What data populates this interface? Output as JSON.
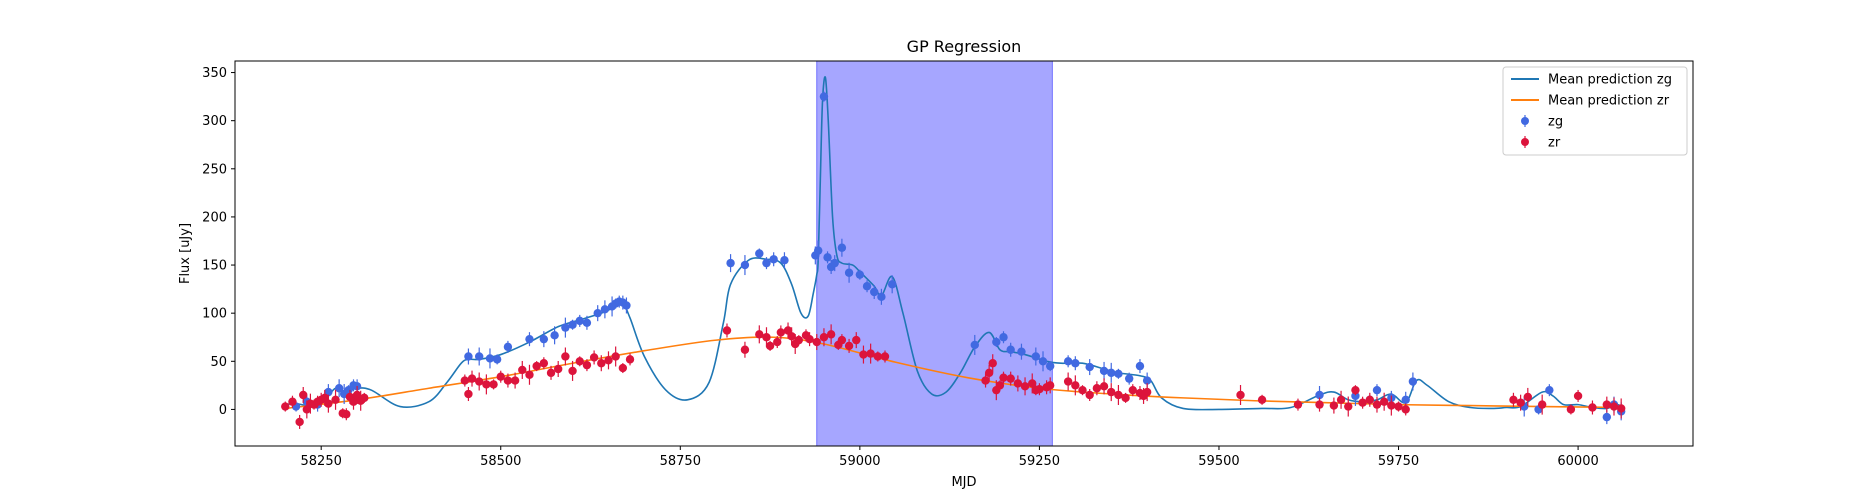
{
  "chart_data": {
    "type": "scatter",
    "title": "GP Regression",
    "xlabel": "MJD",
    "ylabel": "Flux [uJy]",
    "xlim": [
      58130,
      60160
    ],
    "ylim": [
      -38,
      362
    ],
    "xticks": [
      58250,
      58500,
      58750,
      59000,
      59250,
      59500,
      59750,
      60000
    ],
    "yticks": [
      0,
      50,
      100,
      150,
      200,
      250,
      300,
      350
    ],
    "grid": false,
    "legend_position": "top-right",
    "legend": [
      "Mean prediction zg",
      "Mean prediction zr",
      "zg",
      "zr"
    ],
    "highlight_span": {
      "x_start": 58940,
      "x_end": 59268,
      "color": "#a6a6ff"
    },
    "colors": {
      "zg_line": "#1f77b4",
      "zr_line": "#ff7f0e",
      "zg_points": "#4169e1",
      "zr_points": "#dc143c"
    },
    "series": [
      {
        "name": "Mean prediction zg",
        "kind": "line",
        "x": [
          58200,
          58215,
          58235,
          58255,
          58270,
          58285,
          58300,
          58320,
          58360,
          58400,
          58425,
          58445,
          58455,
          58470,
          58500,
          58540,
          58580,
          58610,
          58640,
          58660,
          58670,
          58680,
          58700,
          58730,
          58760,
          58790,
          58810,
          58820,
          58845,
          58870,
          58890,
          58905,
          58918,
          58928,
          58935,
          58940,
          58942,
          58945,
          58948,
          58952,
          58956,
          58962,
          58968,
          58975,
          58990,
          59000,
          59020,
          59030,
          59045,
          59060,
          59080,
          59100,
          59120,
          59140,
          59160,
          59180,
          59195,
          59210,
          59230,
          59260,
          59280,
          59310,
          59340,
          59360,
          59390,
          59405,
          59420,
          59450,
          59500,
          59560,
          59600,
          59640,
          59660,
          59680,
          59700,
          59720,
          59740,
          59760,
          59775,
          59790,
          59820,
          59850,
          59880,
          59900,
          59920,
          59950,
          59965,
          59980,
          60000,
          60020,
          60040,
          60055,
          60065
        ],
        "y": [
          5,
          6,
          4,
          10,
          22,
          18,
          22,
          20,
          3,
          8,
          28,
          48,
          52,
          52,
          57,
          70,
          86,
          93,
          100,
          107,
          110,
          95,
          55,
          20,
          10,
          28,
          90,
          130,
          155,
          156,
          152,
          130,
          100,
          97,
          120,
          140,
          155,
          240,
          320,
          345,
          300,
          200,
          160,
          152,
          150,
          143,
          128,
          118,
          138,
          100,
          40,
          16,
          18,
          38,
          65,
          80,
          62,
          60,
          57,
          50,
          48,
          48,
          42,
          38,
          35,
          30,
          12,
          1,
          0,
          1,
          2,
          15,
          18,
          10,
          8,
          10,
          16,
          7,
          30,
          25,
          8,
          2,
          1,
          2,
          3,
          18,
          14,
          5,
          5,
          2,
          1,
          5,
          0
        ]
      },
      {
        "name": "Mean prediction zr",
        "kind": "line",
        "x": [
          58200,
          58300,
          58400,
          58500,
          58600,
          58700,
          58800,
          58880,
          58950,
          59050,
          59150,
          59250,
          59350,
          59450,
          59550,
          59650,
          59750,
          59850,
          59950,
          60065
        ],
        "y": [
          1,
          10,
          22,
          34,
          48,
          61,
          72,
          75,
          68,
          49,
          33,
          22,
          16,
          12,
          9,
          7,
          5,
          4,
          3,
          2
        ]
      },
      {
        "name": "zg",
        "kind": "points",
        "x": [
          58215,
          58230,
          58245,
          58260,
          58275,
          58282,
          58288,
          58295,
          58300,
          58455,
          58470,
          58485,
          58495,
          58510,
          58540,
          58560,
          58575,
          58590,
          58600,
          58610,
          58620,
          58635,
          58645,
          58655,
          58660,
          58665,
          58670,
          58675,
          58820,
          58840,
          58860,
          58870,
          58880,
          58895,
          58938,
          58942,
          58950,
          58955,
          58960,
          58965,
          58975,
          58985,
          59000,
          59010,
          59020,
          59030,
          59045,
          59160,
          59190,
          59200,
          59210,
          59225,
          59245,
          59255,
          59265,
          59290,
          59300,
          59320,
          59340,
          59350,
          59360,
          59375,
          59390,
          59400,
          59640,
          59690,
          59710,
          59720,
          59740,
          59760,
          59770,
          59925,
          59945,
          59960,
          60040,
          60050,
          60060
        ],
        "y": [
          3,
          8,
          5,
          18,
          22,
          16,
          20,
          25,
          24,
          55,
          55,
          53,
          52,
          65,
          73,
          73,
          77,
          85,
          88,
          92,
          90,
          100,
          104,
          107,
          110,
          112,
          111,
          108,
          152,
          150,
          162,
          152,
          156,
          155,
          160,
          165,
          325,
          158,
          148,
          152,
          168,
          142,
          140,
          128,
          122,
          117,
          130,
          67,
          70,
          75,
          62,
          60,
          55,
          50,
          45,
          50,
          48,
          44,
          40,
          38,
          37,
          32,
          45,
          30,
          15,
          14,
          10,
          20,
          12,
          10,
          29,
          3,
          0,
          20,
          -8,
          5,
          -2
        ]
      },
      {
        "name": "zr",
        "kind": "points",
        "x": [
          58200,
          58210,
          58220,
          58225,
          58230,
          58235,
          58240,
          58245,
          58250,
          58255,
          58260,
          58270,
          58280,
          58285,
          58290,
          58295,
          58300,
          58305,
          58310,
          58450,
          58455,
          58460,
          58470,
          58480,
          58490,
          58500,
          58510,
          58520,
          58530,
          58540,
          58550,
          58560,
          58570,
          58580,
          58590,
          58600,
          58610,
          58620,
          58630,
          58640,
          58650,
          58660,
          58670,
          58680,
          58815,
          58840,
          58860,
          58870,
          58875,
          58885,
          58890,
          58900,
          58905,
          58910,
          58915,
          58925,
          58930,
          58940,
          58950,
          58960,
          58970,
          58975,
          58985,
          58995,
          59005,
          59015,
          59025,
          59035,
          59175,
          59180,
          59185,
          59190,
          59195,
          59200,
          59210,
          59220,
          59230,
          59240,
          59245,
          59250,
          59260,
          59265,
          59290,
          59300,
          59310,
          59320,
          59330,
          59340,
          59350,
          59360,
          59370,
          59380,
          59390,
          59395,
          59400,
          59530,
          59560,
          59610,
          59640,
          59660,
          59670,
          59680,
          59690,
          59700,
          59710,
          59720,
          59730,
          59740,
          59750,
          59760,
          59910,
          59920,
          59930,
          59950,
          59990,
          60000,
          60020,
          60040,
          60050,
          60060
        ],
        "y": [
          3,
          8,
          -13,
          15,
          0,
          6,
          5,
          8,
          10,
          12,
          6,
          10,
          -4,
          -5,
          13,
          8,
          15,
          9,
          12,
          30,
          16,
          32,
          29,
          26,
          26,
          34,
          30,
          30,
          41,
          36,
          45,
          48,
          38,
          42,
          55,
          40,
          50,
          46,
          54,
          48,
          51,
          55,
          43,
          52,
          82,
          62,
          78,
          75,
          66,
          70,
          80,
          82,
          76,
          68,
          72,
          77,
          73,
          70,
          75,
          78,
          67,
          72,
          66,
          72,
          57,
          58,
          55,
          55,
          30,
          38,
          48,
          20,
          25,
          33,
          32,
          27,
          24,
          27,
          20,
          21,
          23,
          25,
          29,
          25,
          20,
          15,
          22,
          24,
          18,
          15,
          12,
          20,
          17,
          14,
          18,
          15,
          10,
          5,
          5,
          4,
          10,
          3,
          20,
          7,
          10,
          5,
          8,
          4,
          3,
          0,
          10,
          7,
          13,
          5,
          0,
          14,
          2,
          5,
          3,
          1
        ]
      }
    ]
  }
}
